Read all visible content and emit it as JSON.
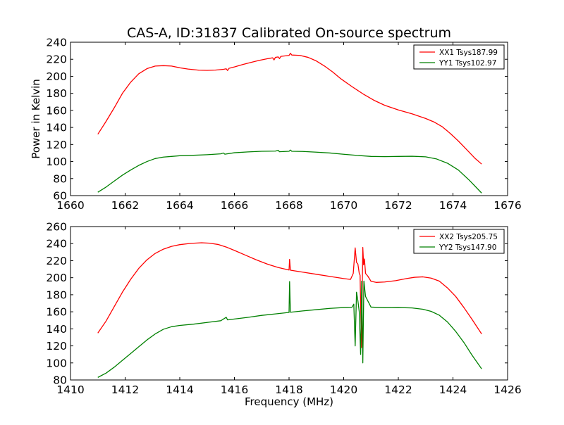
{
  "figure": {
    "title": "CAS-A, ID:31837 Calibrated On-source spectrum"
  },
  "chart_data": [
    {
      "type": "line",
      "title": "CAS-A, ID:31837 Calibrated On-source spectrum",
      "xlabel": "",
      "ylabel": "Power in Kelvin",
      "xlim": [
        1660,
        1676
      ],
      "ylim": [
        60,
        240
      ],
      "xticks": [
        1660,
        1662,
        1664,
        1666,
        1668,
        1670,
        1672,
        1674,
        1676
      ],
      "yticks": [
        60,
        80,
        100,
        120,
        140,
        160,
        180,
        200,
        220,
        240
      ],
      "grid": false,
      "legend_position": "top-right",
      "series": [
        {
          "name": "XX1 Tsys187.99",
          "color": "#ff0000",
          "points": [
            [
              1661.0,
              132
            ],
            [
              1661.3,
              147
            ],
            [
              1661.6,
              163
            ],
            [
              1661.9,
              180
            ],
            [
              1662.2,
              193
            ],
            [
              1662.5,
              203
            ],
            [
              1662.8,
              209
            ],
            [
              1663.1,
              212
            ],
            [
              1663.4,
              212.5
            ],
            [
              1663.7,
              212
            ],
            [
              1664.0,
              210
            ],
            [
              1664.3,
              208.5
            ],
            [
              1664.7,
              207.2
            ],
            [
              1665.0,
              207
            ],
            [
              1665.3,
              207.3
            ],
            [
              1665.6,
              208.2
            ],
            [
              1665.7,
              208.8
            ],
            [
              1665.75,
              206.8
            ],
            [
              1665.8,
              209.3
            ],
            [
              1666.0,
              211
            ],
            [
              1666.3,
              213.8
            ],
            [
              1666.6,
              216.3
            ],
            [
              1666.9,
              218.6
            ],
            [
              1667.2,
              220.6
            ],
            [
              1667.4,
              221.7
            ],
            [
              1667.45,
              219.2
            ],
            [
              1667.5,
              222.2
            ],
            [
              1667.6,
              222.8
            ],
            [
              1667.65,
              220.8
            ],
            [
              1667.7,
              223.4
            ],
            [
              1668.0,
              224.5
            ],
            [
              1668.05,
              227.0
            ],
            [
              1668.1,
              225.0
            ],
            [
              1668.4,
              224.5
            ],
            [
              1668.7,
              222.2
            ],
            [
              1669.0,
              218
            ],
            [
              1669.3,
              212
            ],
            [
              1669.6,
              205
            ],
            [
              1669.9,
              197
            ],
            [
              1670.3,
              188
            ],
            [
              1670.7,
              179.5
            ],
            [
              1671.1,
              172
            ],
            [
              1671.5,
              166
            ],
            [
              1672.0,
              160.5
            ],
            [
              1672.5,
              156
            ],
            [
              1673.0,
              150.5
            ],
            [
              1673.3,
              146.5
            ],
            [
              1673.6,
              141
            ],
            [
              1673.9,
              133
            ],
            [
              1674.2,
              124
            ],
            [
              1674.5,
              114
            ],
            [
              1674.8,
              104
            ],
            [
              1675.05,
              97
            ]
          ]
        },
        {
          "name": "YY1 Tsys102.97",
          "color": "#008000",
          "points": [
            [
              1661.0,
              64
            ],
            [
              1661.3,
              70
            ],
            [
              1661.6,
              77
            ],
            [
              1661.9,
              84
            ],
            [
              1662.2,
              90
            ],
            [
              1662.5,
              95.5
            ],
            [
              1662.8,
              100
            ],
            [
              1663.1,
              103.5
            ],
            [
              1663.4,
              105.2
            ],
            [
              1663.7,
              106
            ],
            [
              1664.0,
              106.8
            ],
            [
              1664.5,
              107.3
            ],
            [
              1665.0,
              108
            ],
            [
              1665.5,
              109
            ],
            [
              1665.6,
              110.0
            ],
            [
              1665.65,
              108.6
            ],
            [
              1666.0,
              110.3
            ],
            [
              1666.5,
              111.3
            ],
            [
              1667.0,
              112
            ],
            [
              1667.5,
              112.2
            ],
            [
              1667.6,
              113.2
            ],
            [
              1667.65,
              111.5
            ],
            [
              1668.0,
              112
            ],
            [
              1668.05,
              113.5
            ],
            [
              1668.1,
              112
            ],
            [
              1668.5,
              111.8
            ],
            [
              1669.0,
              111
            ],
            [
              1669.5,
              110
            ],
            [
              1670.0,
              108.5
            ],
            [
              1670.5,
              107.2
            ],
            [
              1671.0,
              106
            ],
            [
              1671.5,
              105.7
            ],
            [
              1672.0,
              106
            ],
            [
              1672.5,
              106.2
            ],
            [
              1673.0,
              105.5
            ],
            [
              1673.4,
              103
            ],
            [
              1673.8,
              98
            ],
            [
              1674.2,
              90
            ],
            [
              1674.6,
              78
            ],
            [
              1675.05,
              63
            ]
          ]
        }
      ]
    },
    {
      "type": "line",
      "title": "",
      "xlabel": "Frequency (MHz)",
      "ylabel": "",
      "xlim": [
        1410,
        1426
      ],
      "ylim": [
        80,
        260
      ],
      "xticks": [
        1410,
        1412,
        1414,
        1416,
        1418,
        1420,
        1422,
        1424,
        1426
      ],
      "yticks": [
        80,
        100,
        120,
        140,
        160,
        180,
        200,
        220,
        240,
        260
      ],
      "grid": false,
      "legend_position": "top-right",
      "series": [
        {
          "name": "XX2 Tsys205.75",
          "color": "#ff0000",
          "points": [
            [
              1411.0,
              135
            ],
            [
              1411.3,
              149
            ],
            [
              1411.6,
              166
            ],
            [
              1411.9,
              183
            ],
            [
              1412.2,
              198
            ],
            [
              1412.5,
              211
            ],
            [
              1412.8,
              221
            ],
            [
              1413.1,
              228.5
            ],
            [
              1413.4,
              233.5
            ],
            [
              1413.7,
              236.8
            ],
            [
              1414.0,
              238.8
            ],
            [
              1414.4,
              240.3
            ],
            [
              1414.8,
              241
            ],
            [
              1415.1,
              240.5
            ],
            [
              1415.4,
              239
            ],
            [
              1415.7,
              236
            ],
            [
              1416.0,
              232
            ],
            [
              1416.4,
              226.5
            ],
            [
              1416.8,
              221
            ],
            [
              1417.2,
              216
            ],
            [
              1417.6,
              212
            ],
            [
              1418.0,
              209
            ],
            [
              1418.02,
              221.5
            ],
            [
              1418.05,
              208.8
            ],
            [
              1418.5,
              206.5
            ],
            [
              1419.0,
              204
            ],
            [
              1419.5,
              201.5
            ],
            [
              1420.0,
              199
            ],
            [
              1420.25,
              198
            ],
            [
              1420.35,
              205
            ],
            [
              1420.42,
              235
            ],
            [
              1420.47,
              218
            ],
            [
              1420.52,
              216
            ],
            [
              1420.57,
              205
            ],
            [
              1420.6,
              203
            ],
            [
              1420.65,
              118
            ],
            [
              1420.7,
              235.5
            ],
            [
              1420.73,
              215
            ],
            [
              1420.76,
              222
            ],
            [
              1420.8,
              205
            ],
            [
              1420.88,
              202
            ],
            [
              1421.0,
              195.8
            ],
            [
              1421.2,
              194.5
            ],
            [
              1421.5,
              195
            ],
            [
              1421.9,
              196.5
            ],
            [
              1422.3,
              199
            ],
            [
              1422.6,
              200.5
            ],
            [
              1422.9,
              201
            ],
            [
              1423.2,
              199.5
            ],
            [
              1423.5,
              196
            ],
            [
              1423.8,
              188
            ],
            [
              1424.1,
              178
            ],
            [
              1424.4,
              165
            ],
            [
              1424.7,
              151
            ],
            [
              1425.05,
              134
            ]
          ]
        },
        {
          "name": "YY2 Tsys147.90",
          "color": "#008000",
          "points": [
            [
              1411.0,
              83
            ],
            [
              1411.3,
              88
            ],
            [
              1411.6,
              95
            ],
            [
              1411.9,
              103
            ],
            [
              1412.2,
              111
            ],
            [
              1412.5,
              119
            ],
            [
              1412.8,
              127
            ],
            [
              1413.1,
              134
            ],
            [
              1413.4,
              139.5
            ],
            [
              1413.7,
              142.5
            ],
            [
              1414.0,
              144
            ],
            [
              1414.5,
              145.5
            ],
            [
              1415.0,
              147.5
            ],
            [
              1415.5,
              149.5
            ],
            [
              1415.7,
              153.5
            ],
            [
              1415.75,
              150.5
            ],
            [
              1416.0,
              151.5
            ],
            [
              1416.5,
              153.5
            ],
            [
              1417.0,
              155.8
            ],
            [
              1417.5,
              157.5
            ],
            [
              1418.0,
              159.3
            ],
            [
              1418.02,
              195.5
            ],
            [
              1418.05,
              159.5
            ],
            [
              1418.5,
              161
            ],
            [
              1419.0,
              162.5
            ],
            [
              1419.5,
              164
            ],
            [
              1420.0,
              165
            ],
            [
              1420.3,
              165.2
            ],
            [
              1420.37,
              169
            ],
            [
              1420.42,
              120
            ],
            [
              1420.47,
              183
            ],
            [
              1420.52,
              173
            ],
            [
              1420.57,
              160
            ],
            [
              1420.62,
              110
            ],
            [
              1420.66,
              196
            ],
            [
              1420.7,
              100
            ],
            [
              1420.74,
              196
            ],
            [
              1420.8,
              178
            ],
            [
              1420.88,
              173
            ],
            [
              1421.0,
              165.5
            ],
            [
              1421.5,
              164.8
            ],
            [
              1422.0,
              165
            ],
            [
              1422.5,
              164.5
            ],
            [
              1422.9,
              163
            ],
            [
              1423.2,
              160.5
            ],
            [
              1423.5,
              156
            ],
            [
              1423.8,
              148
            ],
            [
              1424.1,
              137
            ],
            [
              1424.4,
              124
            ],
            [
              1424.7,
              109
            ],
            [
              1425.05,
              93
            ]
          ]
        }
      ]
    }
  ]
}
